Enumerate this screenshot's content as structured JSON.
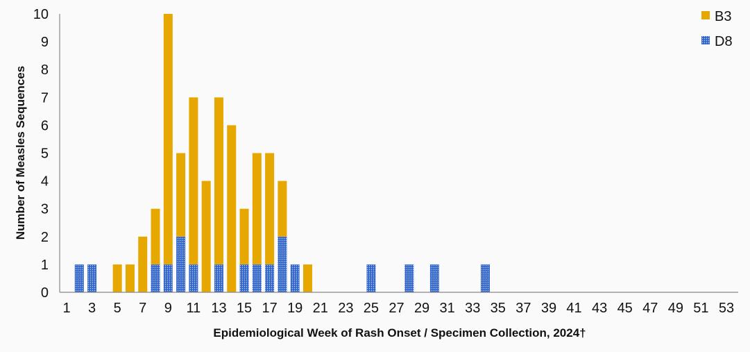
{
  "chart_data": {
    "type": "bar",
    "stacked": true,
    "title": "",
    "xlabel": "Epidemiological Week of Rash Onset / Specimen Collection, 2024†",
    "ylabel": "Number of Measles Sequences",
    "xlim": [
      1,
      53
    ],
    "ylim": [
      0,
      10
    ],
    "yticks": [
      0,
      1,
      2,
      3,
      4,
      5,
      6,
      7,
      8,
      9,
      10
    ],
    "xticks": [
      1,
      3,
      5,
      7,
      9,
      11,
      13,
      15,
      17,
      19,
      21,
      23,
      25,
      27,
      29,
      31,
      33,
      35,
      37,
      39,
      41,
      43,
      45,
      47,
      49,
      51,
      53
    ],
    "grid": false,
    "legend_position": "top-right",
    "series": [
      {
        "name": "D8",
        "color": "#3366cc",
        "pattern": "dotted",
        "points": [
          [
            2,
            1
          ],
          [
            3,
            1
          ],
          [
            8,
            1
          ],
          [
            9,
            1
          ],
          [
            10,
            2
          ],
          [
            11,
            1
          ],
          [
            13,
            1
          ],
          [
            15,
            1
          ],
          [
            16,
            1
          ],
          [
            17,
            1
          ],
          [
            18,
            2
          ],
          [
            19,
            1
          ],
          [
            25,
            1
          ],
          [
            28,
            1
          ],
          [
            30,
            1
          ],
          [
            34,
            1
          ]
        ]
      },
      {
        "name": "B3",
        "color": "#e6a800",
        "points": [
          [
            5,
            1
          ],
          [
            6,
            1
          ],
          [
            7,
            2
          ],
          [
            8,
            2
          ],
          [
            9,
            9
          ],
          [
            10,
            3
          ],
          [
            11,
            6
          ],
          [
            12,
            4
          ],
          [
            13,
            6
          ],
          [
            14,
            6
          ],
          [
            15,
            2
          ],
          [
            16,
            4
          ],
          [
            17,
            4
          ],
          [
            18,
            2
          ],
          [
            20,
            1
          ]
        ]
      }
    ],
    "legend_order": [
      "B3",
      "D8"
    ]
  }
}
